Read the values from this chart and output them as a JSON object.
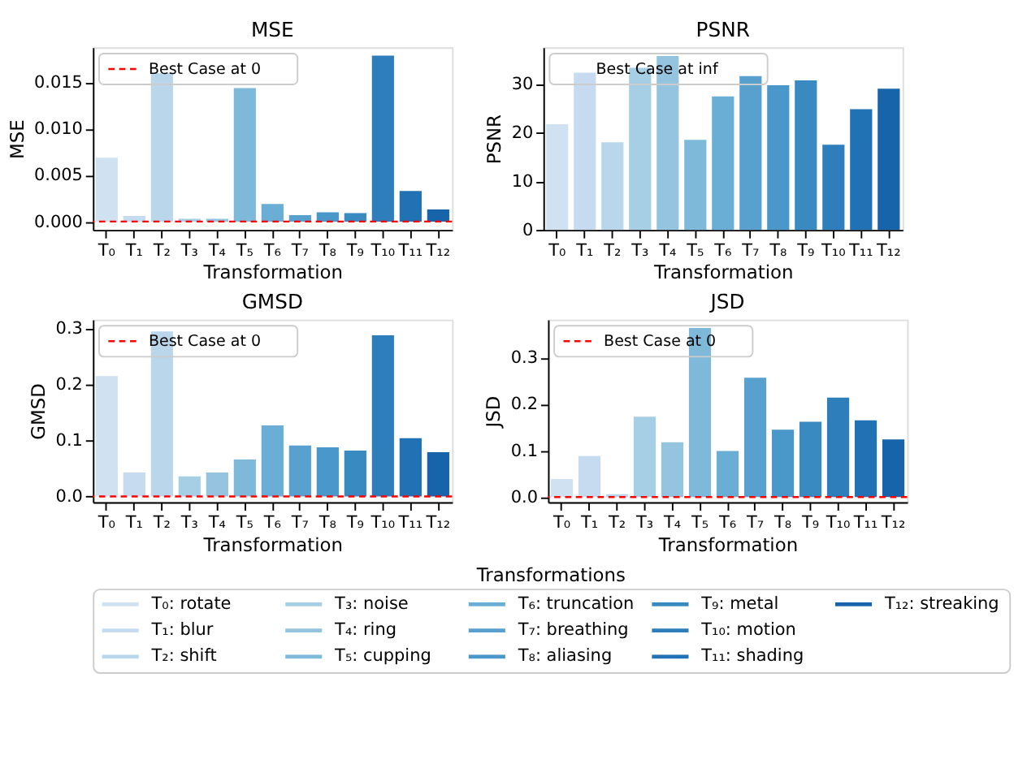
{
  "chart_data": [
    {
      "type": "bar",
      "title": "MSE",
      "xlabel": "Transformation",
      "ylabel": "MSE",
      "categories": [
        "T₀",
        "T₁",
        "T₂",
        "T₃",
        "T₄",
        "T₅",
        "T₆",
        "T₇",
        "T₈",
        "T₉",
        "T₁₀",
        "T₁₁",
        "T₁₂"
      ],
      "values": [
        0.0069,
        0.0006,
        0.016,
        0.0003,
        0.0003,
        0.0144,
        0.0019,
        0.0007,
        0.001,
        0.0009,
        0.0179,
        0.0033,
        0.0013
      ],
      "colors": [
        "#d0e1f2",
        "#c6dbef",
        "#b9d6ea",
        "#a6cee4",
        "#94c4df",
        "#7fb9da",
        "#6aaed6",
        "#58a1cf",
        "#4a98c9",
        "#3a8ac2",
        "#2e7ebc",
        "#2171b5",
        "#1764ab"
      ],
      "ylim": [
        -0.0009,
        0.0188
      ],
      "yticks": [
        {
          "value": 0,
          "label": "0.000"
        },
        {
          "value": 0.005,
          "label": "0.005"
        },
        {
          "value": 0.01,
          "label": "0.010"
        },
        {
          "value": 0.015,
          "label": "0.015"
        }
      ],
      "grid": false,
      "legend": "top left",
      "ref_lines": [
        {
          "axis": "y",
          "value": 0,
          "label": "Best Case at 0",
          "color": "#ff0000",
          "line_style": "dashed"
        }
      ]
    },
    {
      "type": "bar",
      "title": "PSNR",
      "xlabel": "Transformation",
      "ylabel": "PSNR",
      "categories": [
        "T₀",
        "T₁",
        "T₂",
        "T₃",
        "T₄",
        "T₅",
        "T₆",
        "T₇",
        "T₈",
        "T₉",
        "T₁₀",
        "T₁₁",
        "T₁₂"
      ],
      "values": [
        21.7,
        32.3,
        18.0,
        33.3,
        35.7,
        18.5,
        27.4,
        31.6,
        29.7,
        30.7,
        17.5,
        24.8,
        29.0
      ],
      "colors": [
        "#d0e1f2",
        "#c6dbef",
        "#b9d6ea",
        "#a6cee4",
        "#94c4df",
        "#7fb9da",
        "#6aaed6",
        "#58a1cf",
        "#4a98c9",
        "#3a8ac2",
        "#2e7ebc",
        "#2171b5",
        "#1764ab"
      ],
      "ylim": [
        0,
        37.5
      ],
      "yticks": [
        0,
        10,
        20,
        30
      ],
      "grid": false,
      "annotations": [
        "Best Case at inf"
      ]
    },
    {
      "type": "bar",
      "title": "GMSD",
      "xlabel": "Transformation",
      "ylabel": "GMSD",
      "categories": [
        "T₀",
        "T₁",
        "T₂",
        "T₃",
        "T₄",
        "T₅",
        "T₆",
        "T₇",
        "T₈",
        "T₉",
        "T₁₀",
        "T₁₁",
        "T₁₂"
      ],
      "values": [
        0.215,
        0.043,
        0.295,
        0.036,
        0.043,
        0.066,
        0.127,
        0.091,
        0.088,
        0.082,
        0.288,
        0.104,
        0.079
      ],
      "colors": [
        "#d0e1f2",
        "#c6dbef",
        "#b9d6ea",
        "#a6cee4",
        "#94c4df",
        "#7fb9da",
        "#6aaed6",
        "#58a1cf",
        "#4a98c9",
        "#3a8ac2",
        "#2e7ebc",
        "#2171b5",
        "#1764ab"
      ],
      "ylim": [
        -0.01,
        0.316
      ],
      "yticks": [
        {
          "value": 0,
          "label": "0.0"
        },
        0.1,
        0.2,
        0.3
      ],
      "grid": false,
      "legend": "top left",
      "ref_lines": [
        {
          "axis": "y",
          "value": 0,
          "label": "Best Case at 0",
          "color": "#ff0000",
          "line_style": "dashed"
        }
      ]
    },
    {
      "type": "bar",
      "title": "JSD",
      "xlabel": "Transformation",
      "ylabel": "JSD",
      "categories": [
        "T₀",
        "T₁",
        "T₂",
        "T₃",
        "T₄",
        "T₅",
        "T₆",
        "T₇",
        "T₈",
        "T₉",
        "T₁₀",
        "T₁₁",
        "T₁₂"
      ],
      "values": [
        0.039,
        0.088,
        0.006,
        0.173,
        0.118,
        0.364,
        0.099,
        0.257,
        0.145,
        0.162,
        0.214,
        0.165,
        0.124
      ],
      "colors": [
        "#d0e1f2",
        "#c6dbef",
        "#b9d6ea",
        "#a6cee4",
        "#94c4df",
        "#7fb9da",
        "#6aaed6",
        "#58a1cf",
        "#4a98c9",
        "#3a8ac2",
        "#2e7ebc",
        "#2171b5",
        "#1764ab"
      ],
      "ylim": [
        -0.011,
        0.382
      ],
      "yticks": [
        {
          "value": 0,
          "label": "0.0"
        },
        0.1,
        0.2,
        0.3
      ],
      "grid": false,
      "legend": "top left",
      "ref_lines": [
        {
          "axis": "y",
          "value": 0,
          "label": "Best Case at 0",
          "color": "#ff0000",
          "line_style": "dashed"
        }
      ]
    },
    {
      "type": "other",
      "legend_title": "Transformations",
      "categories": [
        "T₀: rotate",
        "T₁: blur",
        "T₂: shift",
        "T₃: noise",
        "T₄: ring",
        "T₅: cupping",
        "T₆: truncation",
        "T₇: breathing",
        "T₈: aliasing",
        "T₉: metal",
        "T₁₀: motion",
        "T₁₁: shading",
        "T₁₂: streaking"
      ],
      "colors": [
        "#d0e1f2",
        "#c6dbef",
        "#b9d6ea",
        "#a6cee4",
        "#94c4df",
        "#7fb9da",
        "#6aaed6",
        "#58a1cf",
        "#4a98c9",
        "#3a8ac2",
        "#2e7ebc",
        "#2171b5",
        "#1764ab"
      ]
    }
  ]
}
